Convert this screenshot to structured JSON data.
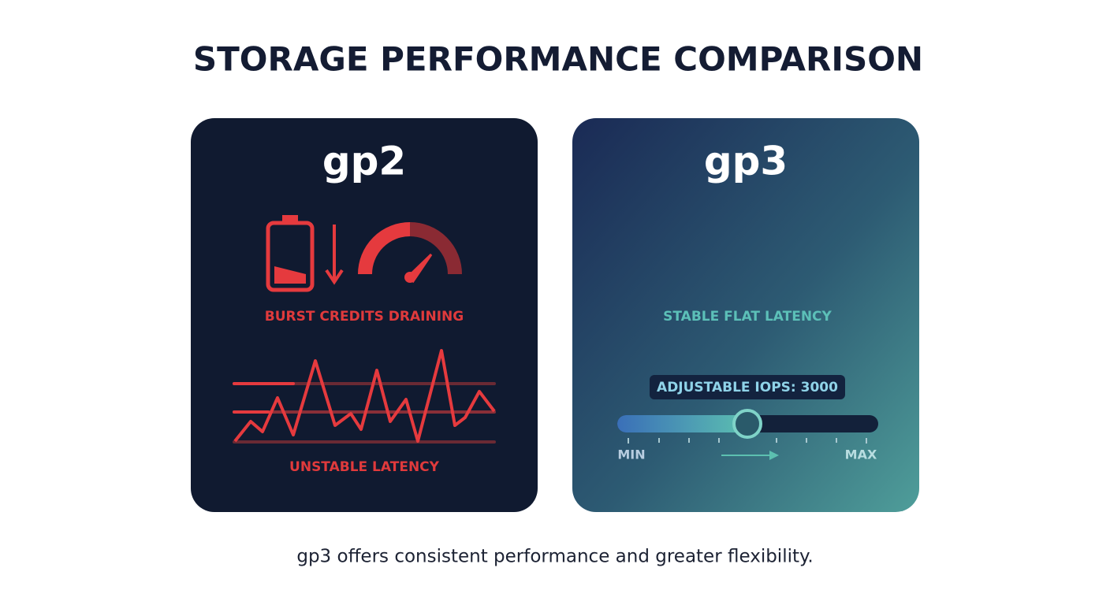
{
  "header": {
    "title": "STORAGE PERFORMANCE COMPARISON"
  },
  "cards": [
    {
      "title": "gp2",
      "labels": [
        "BURST CREDITS DRAINING",
        "UNSTABLE LATENCY"
      ]
    },
    {
      "title": "gp3",
      "labels": [
        "STABLE FLAT LATENCY"
      ],
      "badge": "ADJUSTABLE IOPS: 3000",
      "slider_min": "MIN",
      "slider_max": "MAX"
    }
  ],
  "caption": "gp3 offers consistent performance and greater flexibility."
}
